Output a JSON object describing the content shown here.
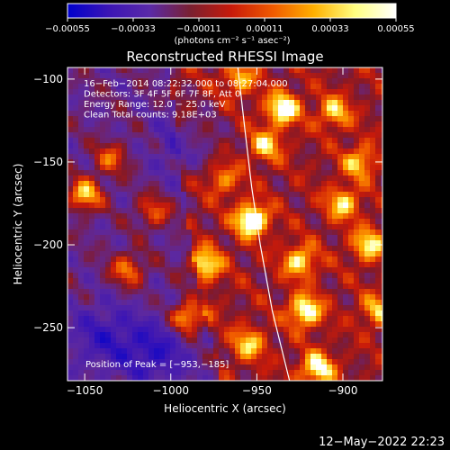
{
  "chart_data": {
    "type": "heatmap",
    "title": "Reconstructed RHESSI Image",
    "colorbar": {
      "ticks": [
        "−0.00055",
        "−0.00033",
        "−0.00011",
        "0.00011",
        "0.00033",
        "0.00055"
      ],
      "range": [
        -0.00055,
        0.00055
      ],
      "unit_label": "(photons cm⁻² s⁻¹ asec⁻²)",
      "colors": [
        "#0000cc",
        "#3b15b5",
        "#5a2aa8",
        "#7a2030",
        "#c81a0a",
        "#f05a00",
        "#ffb000",
        "#ffff80",
        "#ffffff"
      ]
    },
    "xlabel": "Heliocentric X (arcsec)",
    "ylabel": "Heliocentric Y (arcsec)",
    "xlim": [
      -1060,
      -877
    ],
    "ylim": [
      -282,
      -93
    ],
    "xticks": [
      {
        "value": -1050,
        "label": "−1050"
      },
      {
        "value": -1000,
        "label": "−1000"
      },
      {
        "value": -950,
        "label": "−950"
      },
      {
        "value": -900,
        "label": "−900"
      }
    ],
    "yticks": [
      {
        "value": -100,
        "label": "−100"
      },
      {
        "value": -150,
        "label": "−150"
      },
      {
        "value": -200,
        "label": "−200"
      },
      {
        "value": -250,
        "label": "−250"
      }
    ],
    "annotations": [
      "16−Feb−2014 08:22:32.000 to 08:27:04.000",
      "Detectors: 3F 4F 5F 6F 7F 8F, Att 0",
      "Energy Range: 12.0 − 25.0 keV",
      "Clean     Total counts: 9.18E+03"
    ],
    "peak_label": "Position of Peak = [−953,−185]",
    "peak_position": [
      -953,
      -185
    ],
    "limb_curve": [
      [
        -961,
        -93
      ],
      [
        -957,
        -130
      ],
      [
        -953,
        -165
      ],
      [
        -948,
        -200
      ],
      [
        -941,
        -240
      ],
      [
        -931,
        -282
      ]
    ],
    "hot_spots": [
      {
        "x": -953,
        "y": -185,
        "intensity": 1.0
      },
      {
        "x": -1050,
        "y": -170,
        "intensity": 0.85
      },
      {
        "x": -990,
        "y": -244,
        "intensity": 0.9
      },
      {
        "x": -1025,
        "y": -215,
        "intensity": 0.65
      },
      {
        "x": -980,
        "y": -212,
        "intensity": 0.75
      },
      {
        "x": -922,
        "y": -240,
        "intensity": 0.85
      },
      {
        "x": -925,
        "y": -210,
        "intensity": 0.7
      },
      {
        "x": -915,
        "y": -275,
        "intensity": 0.8
      },
      {
        "x": -955,
        "y": -260,
        "intensity": 0.6
      },
      {
        "x": -900,
        "y": -175,
        "intensity": 0.65
      },
      {
        "x": -885,
        "y": -200,
        "intensity": 0.7
      },
      {
        "x": -935,
        "y": -118,
        "intensity": 0.85
      },
      {
        "x": -905,
        "y": -120,
        "intensity": 0.6
      },
      {
        "x": -890,
        "y": -150,
        "intensity": 0.6
      },
      {
        "x": -880,
        "y": -240,
        "intensity": 0.55
      },
      {
        "x": -960,
        "y": -100,
        "intensity": 0.55
      },
      {
        "x": -1035,
        "y": -148,
        "intensity": 0.55
      },
      {
        "x": -1010,
        "y": -180,
        "intensity": 0.55
      },
      {
        "x": -945,
        "y": -140,
        "intensity": 0.6
      },
      {
        "x": -970,
        "y": -160,
        "intensity": 0.5
      }
    ],
    "negative_regions": [
      {
        "x": -1010,
        "y": -265,
        "intensity": 0.55
      },
      {
        "x": -1040,
        "y": -255,
        "intensity": 0.45
      },
      {
        "x": -990,
        "y": -140,
        "intensity": 0.35
      }
    ]
  },
  "footer": {
    "date": "12−May−2022 22:23"
  }
}
